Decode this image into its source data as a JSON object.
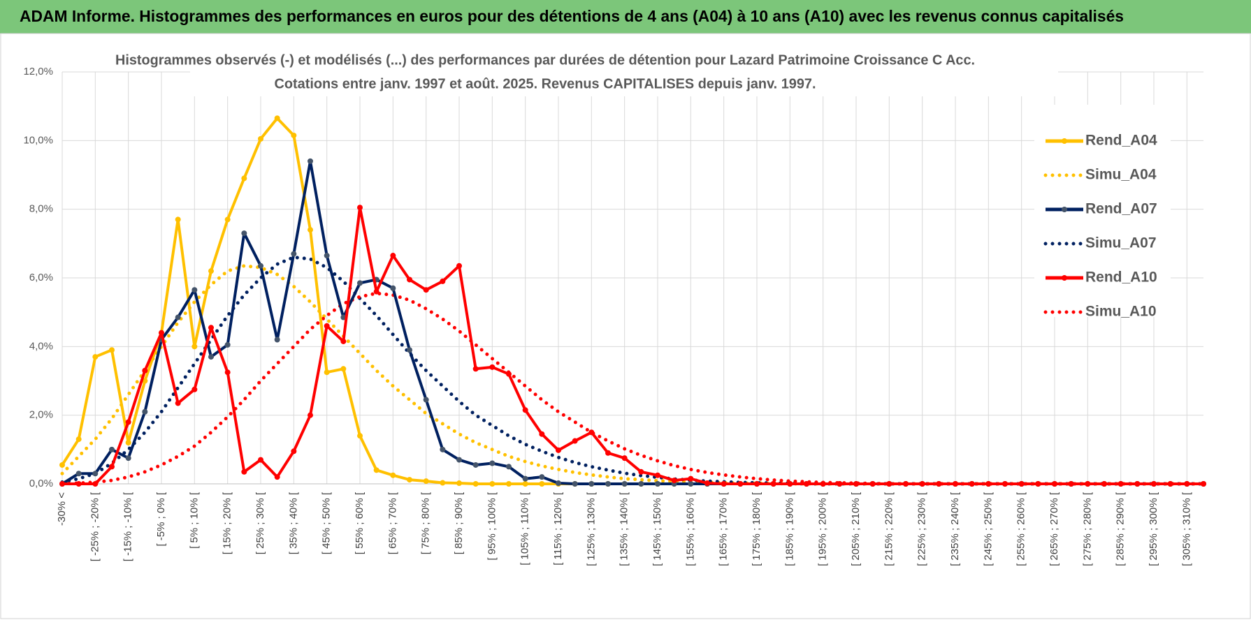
{
  "chart_data": {
    "type": "line",
    "title": "ADAM Informe. Histogrammes des performances en euros pour des détentions de 4 ans (A04) à 10 ans (A10) avec les revenus connus capitalisés",
    "subtitle": [
      "Histogrammes observés (-) et modélisés (...) des performances par durées de détention pour Lazard Patrimoine Croissance C Acc.",
      "Cotations entre janv. 1997 et août. 2025. Revenus CAPITALISES depuis janv. 1997."
    ],
    "categories": [
      "-30% <",
      null,
      "[ -25% ; -20% [",
      null,
      "[ -15% ; -10% [",
      null,
      "[ -5% ; 0% [",
      null,
      "[ 5% ; 10% [",
      null,
      "[ 15% ; 20% [",
      null,
      "[ 25% ; 30% [",
      null,
      "[ 35% ; 40% [",
      null,
      "[ 45% ; 50% [",
      null,
      "[ 55% ; 60% [",
      null,
      "[ 65% ; 70% [",
      null,
      "[ 75% ; 80% [",
      null,
      "[ 85% ; 90% [",
      null,
      "[ 95% ; 100% [",
      null,
      "[ 105% ; 110% [",
      null,
      "[ 115% ; 120% [",
      null,
      "[ 125% ; 130% [",
      null,
      "[ 135% ; 140% [",
      null,
      "[ 145% ; 150% [",
      null,
      "[ 155% ; 160% [",
      null,
      "[ 165% ; 170% [",
      null,
      "[ 175% ; 180% [",
      null,
      "[ 185% ; 190% [",
      null,
      "[ 195% ; 200% [",
      null,
      "[ 205% ; 210% [",
      null,
      "[ 215% ; 220% [",
      null,
      "[ 225% ; 230% [",
      null,
      "[ 235% ; 240% [",
      null,
      "[ 245% ; 250% [",
      null,
      "[ 255% ; 260% [",
      null,
      "[ 265% ; 270% [",
      null,
      "[ 275% ; 280% [",
      null,
      "[ 285% ; 290% [",
      null,
      "[ 295% ; 300% [",
      null,
      "[ 305% ; 310% [",
      null
    ],
    "series": [
      {
        "name": "Rend_A04",
        "color": "#ffc000",
        "style": "solid",
        "markers": true,
        "values": [
          0.55,
          1.3,
          3.7,
          3.9,
          1.2,
          3.0,
          4.4,
          7.7,
          4.0,
          6.2,
          7.7,
          8.9,
          10.05,
          10.65,
          10.15,
          7.4,
          3.25,
          3.35,
          1.4,
          0.4,
          0.25,
          0.12,
          0.08,
          0.03,
          0.02,
          0,
          0,
          0,
          0,
          0,
          0,
          0,
          0,
          0,
          0,
          0,
          0,
          0,
          0,
          0,
          0,
          0,
          0,
          0,
          0,
          0,
          0,
          0,
          0,
          0,
          0,
          0,
          0,
          0,
          0,
          0,
          0,
          0,
          0,
          0,
          0,
          0,
          0,
          0,
          0,
          0,
          0,
          0,
          0,
          0
        ]
      },
      {
        "name": "Simu_A04",
        "color": "#ffc000",
        "style": "dotted",
        "markers": false,
        "values": [
          0.3,
          0.8,
          1.3,
          1.9,
          2.6,
          3.3,
          4.0,
          4.7,
          5.3,
          5.8,
          6.2,
          6.35,
          6.3,
          6.1,
          5.75,
          5.3,
          4.8,
          4.3,
          3.8,
          3.3,
          2.85,
          2.45,
          2.05,
          1.75,
          1.45,
          1.2,
          1.0,
          0.8,
          0.65,
          0.52,
          0.42,
          0.33,
          0.26,
          0.2,
          0.15,
          0.12,
          0.09,
          0.07,
          0.05,
          0.04,
          0.03,
          0.02,
          0.02,
          0.01,
          0,
          0,
          0,
          0,
          0,
          0,
          0,
          0,
          0,
          0,
          0,
          0,
          0,
          0,
          0,
          0,
          0,
          0,
          0,
          0,
          0,
          0,
          0,
          0,
          0,
          0
        ]
      },
      {
        "name": "Rend_A07",
        "color": "#002060",
        "style": "solid",
        "markers": true,
        "values": [
          0,
          0.3,
          0.3,
          1.0,
          0.75,
          2.1,
          4.2,
          4.85,
          5.65,
          3.7,
          4.05,
          7.3,
          6.35,
          4.2,
          6.7,
          9.4,
          6.65,
          4.85,
          5.85,
          5.95,
          5.7,
          3.9,
          2.45,
          1.0,
          0.7,
          0.55,
          0.6,
          0.5,
          0.15,
          0.2,
          0.02,
          0,
          0,
          0,
          0,
          0,
          0,
          0,
          0,
          0,
          0,
          0,
          0,
          0,
          0,
          0,
          0,
          0,
          0,
          0,
          0,
          0,
          0,
          0,
          0,
          0,
          0,
          0,
          0,
          0,
          0,
          0,
          0,
          0,
          0,
          0,
          0,
          0,
          0,
          0
        ]
      },
      {
        "name": "Simu_A07",
        "color": "#002060",
        "style": "dotted",
        "markers": false,
        "values": [
          0.05,
          0.15,
          0.3,
          0.6,
          1.0,
          1.5,
          2.1,
          2.8,
          3.5,
          4.2,
          4.9,
          5.5,
          6.0,
          6.4,
          6.6,
          6.55,
          6.3,
          5.9,
          5.4,
          4.9,
          4.35,
          3.8,
          3.3,
          2.85,
          2.4,
          2.0,
          1.7,
          1.4,
          1.15,
          0.95,
          0.77,
          0.62,
          0.5,
          0.4,
          0.31,
          0.24,
          0.19,
          0.14,
          0.11,
          0.08,
          0.06,
          0.04,
          0.03,
          0.02,
          0.01,
          0,
          0,
          0,
          0,
          0,
          0,
          0,
          0,
          0,
          0,
          0,
          0,
          0,
          0,
          0,
          0,
          0,
          0,
          0,
          0,
          0,
          0,
          0,
          0,
          0
        ]
      },
      {
        "name": "Rend_A10",
        "color": "#ff0000",
        "style": "solid",
        "markers": true,
        "values": [
          0,
          0,
          0,
          0.5,
          1.8,
          3.3,
          4.4,
          2.35,
          2.75,
          4.55,
          3.25,
          0.35,
          0.7,
          0.2,
          0.95,
          2.0,
          4.6,
          4.15,
          8.05,
          5.6,
          6.65,
          5.95,
          5.65,
          5.9,
          6.35,
          3.35,
          3.4,
          3.2,
          2.15,
          1.45,
          0.98,
          1.25,
          1.5,
          0.9,
          0.75,
          0.35,
          0.25,
          0.1,
          0.15,
          0.02,
          0,
          0,
          0,
          0,
          0,
          0,
          0,
          0,
          0,
          0,
          0,
          0,
          0,
          0,
          0,
          0,
          0,
          0,
          0,
          0,
          0,
          0,
          0,
          0,
          0,
          0,
          0,
          0,
          0,
          0
        ]
      },
      {
        "name": "Simu_A10",
        "color": "#ff0000",
        "style": "dotted",
        "markers": false,
        "values": [
          0,
          0.02,
          0.05,
          0.1,
          0.2,
          0.35,
          0.55,
          0.8,
          1.1,
          1.5,
          1.95,
          2.45,
          3.0,
          3.5,
          4.0,
          4.5,
          4.9,
          5.25,
          5.45,
          5.55,
          5.5,
          5.35,
          5.1,
          4.8,
          4.45,
          4.05,
          3.65,
          3.25,
          2.85,
          2.45,
          2.1,
          1.8,
          1.5,
          1.25,
          1.02,
          0.83,
          0.67,
          0.53,
          0.42,
          0.33,
          0.26,
          0.2,
          0.15,
          0.11,
          0.08,
          0.06,
          0.04,
          0.03,
          0.02,
          0.01,
          0,
          0,
          0,
          0,
          0,
          0,
          0,
          0,
          0,
          0,
          0,
          0,
          0,
          0,
          0,
          0,
          0,
          0,
          0,
          0
        ]
      }
    ],
    "ylim": [
      0,
      12
    ],
    "yticks": [
      {
        "value": 0,
        "label": "0,0%"
      },
      {
        "value": 2,
        "label": "2,0%"
      },
      {
        "value": 4,
        "label": "4,0%"
      },
      {
        "value": 6,
        "label": "6,0%"
      },
      {
        "value": 8,
        "label": "8,0%"
      },
      {
        "value": 10,
        "label": "10,0%"
      },
      {
        "value": 12,
        "label": "12,0%"
      }
    ],
    "grid": true,
    "legend": "right"
  }
}
